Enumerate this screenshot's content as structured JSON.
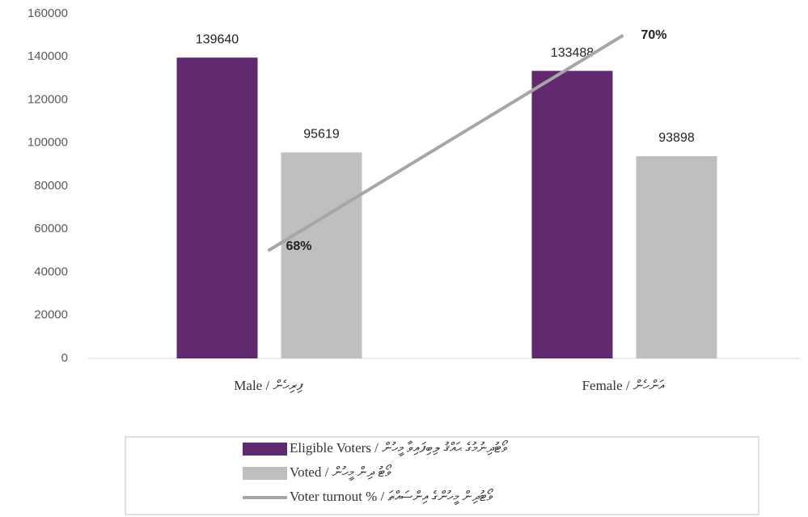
{
  "chart_data": {
    "type": "bar",
    "categories": [
      "Male / ފިރިހެން",
      "Female / އަންހެން"
    ],
    "series": [
      {
        "name": "Eligible Voters / ވޯޓުދިނުމުގެ ޙައްޤު ލިބިފައިވާ މީހުން",
        "color": "#622a6e",
        "values": [
          139640,
          133488
        ]
      },
      {
        "name": "Voted / ވޯޓު ދިން މީހުން",
        "color": "#bfbfbf",
        "values": [
          95619,
          93898
        ]
      },
      {
        "name": "Voter turnout % / ވޯޓުދިން މީހުންގެ އިންސައްތަ",
        "color": "#a6a6a6",
        "type": "line",
        "axis": "y2",
        "values": [
          68,
          70
        ],
        "value_labels": [
          "68%",
          "70%"
        ]
      }
    ],
    "ylim": [
      0,
      160000
    ],
    "yticks": [
      0,
      20000,
      40000,
      60000,
      80000,
      100000,
      120000,
      140000,
      160000
    ],
    "y2lim": [
      67,
      70.2
    ],
    "legend": "bottom"
  }
}
